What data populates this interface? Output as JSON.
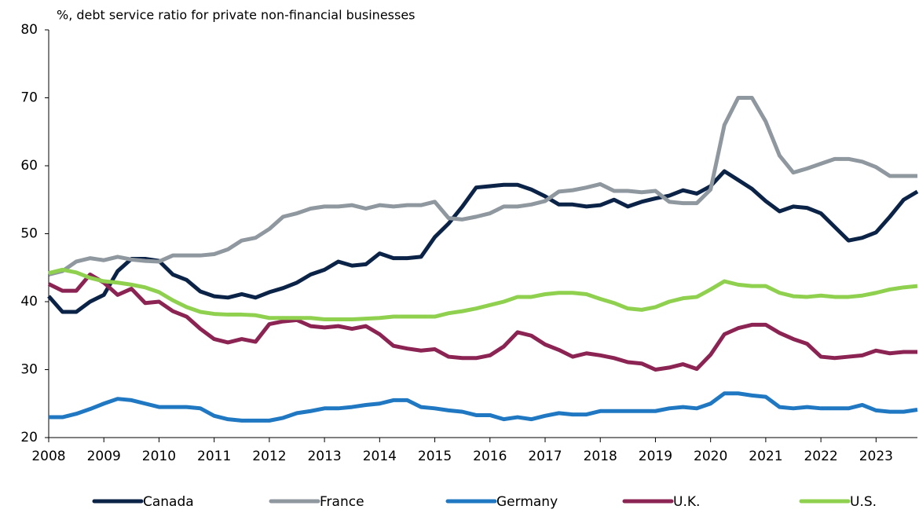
{
  "chart_data": {
    "type": "line",
    "subtitle": "%, debt service ratio for private non-financial businesses",
    "x": [
      2008,
      2008.25,
      2008.5,
      2008.75,
      2009,
      2009.25,
      2009.5,
      2009.75,
      2010,
      2010.25,
      2010.5,
      2010.75,
      2011,
      2011.25,
      2011.5,
      2011.75,
      2012,
      2012.25,
      2012.5,
      2012.75,
      2013,
      2013.25,
      2013.5,
      2013.75,
      2014,
      2014.25,
      2014.5,
      2014.75,
      2015,
      2015.25,
      2015.5,
      2015.75,
      2016,
      2016.25,
      2016.5,
      2016.75,
      2017,
      2017.25,
      2017.5,
      2017.75,
      2018,
      2018.25,
      2018.5,
      2018.75,
      2019,
      2019.25,
      2019.5,
      2019.75,
      2020,
      2020.25,
      2020.5,
      2020.75,
      2021,
      2021.25,
      2021.5,
      2021.75,
      2022,
      2022.25,
      2022.5,
      2022.75,
      2023,
      2023.25,
      2023.5,
      2023.75
    ],
    "xlim": [
      2008,
      2023.75
    ],
    "xticks": [
      2008,
      2009,
      2010,
      2011,
      2012,
      2013,
      2014,
      2015,
      2016,
      2017,
      2018,
      2019,
      2020,
      2021,
      2022,
      2023
    ],
    "ylim": [
      20,
      80
    ],
    "yticks": [
      20,
      30,
      40,
      50,
      60,
      70,
      80
    ],
    "series": [
      {
        "name": "Canada",
        "color": "#0b2347",
        "values": [
          40.8,
          38.5,
          38.5,
          40,
          41,
          44.5,
          46.3,
          46.3,
          46,
          44,
          43.2,
          41.5,
          40.8,
          40.6,
          41.1,
          40.6,
          41.4,
          42,
          42.8,
          44,
          44.7,
          45.9,
          45.3,
          45.5,
          47.1,
          46.4,
          46.4,
          46.6,
          49.5,
          51.5,
          54,
          56.8,
          57,
          57.2,
          57.2,
          56.5,
          55.5,
          54.3,
          54.3,
          54,
          54.2,
          55,
          54,
          54.7,
          55.2,
          55.6,
          56.4,
          55.9,
          57,
          59.2,
          57.9,
          56.6,
          54.8,
          53.3,
          54,
          53.8,
          53,
          51,
          49,
          49.4,
          50.2,
          52.5,
          55,
          56.2
        ]
      },
      {
        "name": "France",
        "color": "#8f979f",
        "values": [
          44,
          44.5,
          45.9,
          46.4,
          46.1,
          46.6,
          46.2,
          46,
          45.9,
          46.8,
          46.8,
          46.8,
          47,
          47.7,
          49,
          49.4,
          50.7,
          52.5,
          53,
          53.7,
          54,
          54,
          54.2,
          53.7,
          54.2,
          54,
          54.2,
          54.2,
          54.7,
          52.3,
          52.1,
          52.5,
          53,
          54,
          54,
          54.3,
          54.8,
          56.2,
          56.4,
          56.8,
          57.3,
          56.3,
          56.3,
          56.1,
          56.3,
          54.7,
          54.5,
          54.5,
          56.5,
          66,
          70,
          70,
          66.5,
          61.5,
          59,
          59.6,
          60.3,
          61,
          61,
          60.6,
          59.8,
          58.5,
          58.5,
          58.5
        ]
      },
      {
        "name": "Germany",
        "color": "#1f78c1",
        "values": [
          23,
          23,
          23.5,
          24.2,
          25,
          25.7,
          25.5,
          25,
          24.5,
          24.5,
          24.5,
          24.3,
          23.2,
          22.7,
          22.5,
          22.5,
          22.5,
          22.9,
          23.6,
          23.9,
          24.3,
          24.3,
          24.5,
          24.8,
          25,
          25.5,
          25.5,
          24.5,
          24.3,
          24,
          23.8,
          23.3,
          23.3,
          22.7,
          23,
          22.7,
          23.2,
          23.6,
          23.4,
          23.4,
          23.9,
          23.9,
          23.9,
          23.9,
          23.9,
          24.3,
          24.5,
          24.3,
          25,
          26.5,
          26.5,
          26.2,
          26,
          24.5,
          24.3,
          24.5,
          24.3,
          24.3,
          24.3,
          24.8,
          24,
          23.8,
          23.8,
          24.1
        ]
      },
      {
        "name": "U.K.",
        "color": "#8b2353",
        "values": [
          42.6,
          41.6,
          41.6,
          44,
          42.8,
          41,
          41.9,
          39.8,
          40,
          38.6,
          37.8,
          36,
          34.5,
          34,
          34.5,
          34.1,
          36.7,
          37.1,
          37.3,
          36.4,
          36.2,
          36.4,
          36,
          36.4,
          35.2,
          33.5,
          33.1,
          32.8,
          33,
          31.9,
          31.7,
          31.7,
          32.1,
          33.4,
          35.5,
          35,
          33.7,
          32.9,
          31.9,
          32.4,
          32.1,
          31.7,
          31.1,
          30.9,
          30,
          30.3,
          30.8,
          30.1,
          32.2,
          35.2,
          36.1,
          36.6,
          36.6,
          35.4,
          34.5,
          33.8,
          31.9,
          31.7,
          31.9,
          32.1,
          32.8,
          32.4,
          32.6,
          32.6
        ]
      },
      {
        "name": "U.S.",
        "color": "#8fd14f",
        "values": [
          44.2,
          44.7,
          44.3,
          43.5,
          43,
          42.8,
          42.5,
          42.1,
          41.4,
          40.2,
          39.2,
          38.5,
          38.2,
          38.1,
          38.1,
          38,
          37.6,
          37.6,
          37.6,
          37.6,
          37.4,
          37.4,
          37.4,
          37.5,
          37.6,
          37.8,
          37.8,
          37.8,
          37.8,
          38.3,
          38.6,
          39,
          39.5,
          40,
          40.7,
          40.7,
          41.1,
          41.3,
          41.3,
          41.1,
          40.4,
          39.8,
          39,
          38.8,
          39.2,
          40,
          40.5,
          40.7,
          41.8,
          43,
          42.5,
          42.3,
          42.3,
          41.3,
          40.8,
          40.7,
          40.9,
          40.7,
          40.7,
          40.9,
          41.3,
          41.8,
          42.1,
          42.3
        ]
      }
    ]
  }
}
